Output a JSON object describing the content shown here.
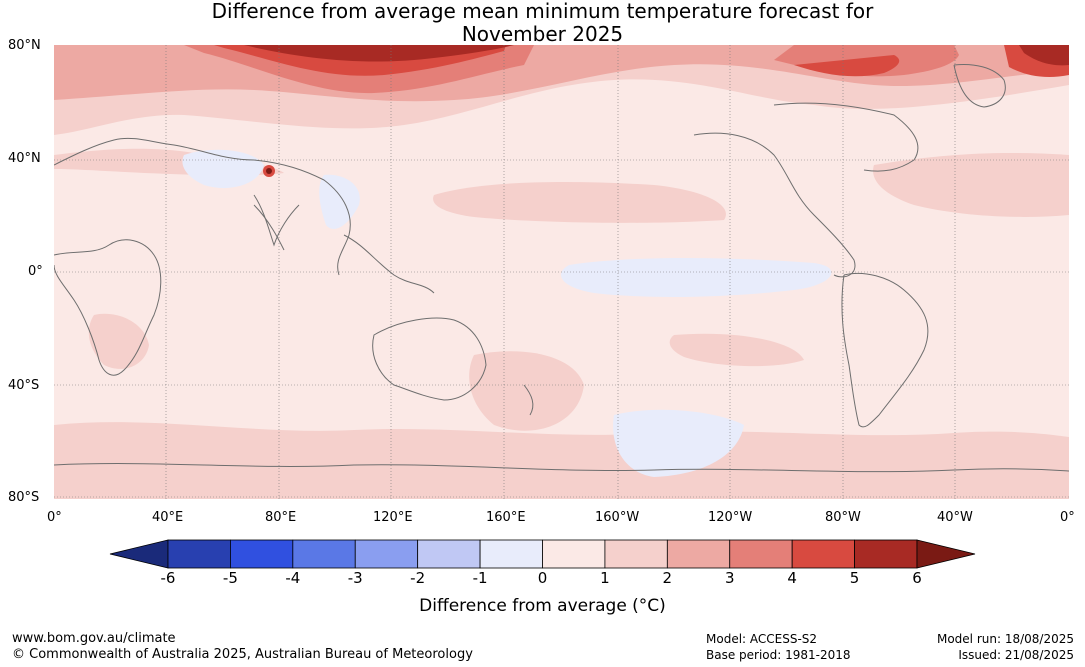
{
  "title": {
    "line1": "Difference from average mean minimum temperature forecast for",
    "line2": "November 2025"
  },
  "map": {
    "lat_labels": [
      "80°N",
      "40°N",
      "0°",
      "40°S",
      "80°S"
    ],
    "lon_labels": [
      "0°",
      "40°E",
      "80°E",
      "120°E",
      "160°E",
      "160°W",
      "120°W",
      "80°W",
      "40°W",
      "0°"
    ]
  },
  "colorbar": {
    "ticks": [
      "-6",
      "-5",
      "-4",
      "-3",
      "-2",
      "-1",
      "0",
      "1",
      "2",
      "3",
      "4",
      "5",
      "6"
    ],
    "colors": [
      "#1a2a7a",
      "#2840b0",
      "#3050e0",
      "#5a78e6",
      "#8a9ef0",
      "#c0c8f4",
      "#e8ecfb",
      "#fbe9e6",
      "#f5d0cc",
      "#eda9a3",
      "#e47f78",
      "#d84a40",
      "#a82a24",
      "#7a1a14"
    ],
    "label": "Difference from average (°C)"
  },
  "footer": {
    "website": "www.bom.gov.au/climate",
    "copyright": "© Commonwealth of Australia 2025, Australian Bureau of Meteorology",
    "model": "Model: ACCESS-S2",
    "base_period": "Base period: 1981-2018",
    "model_run": "Model run: 18/08/2025",
    "issued": "Issued: 21/08/2025"
  }
}
